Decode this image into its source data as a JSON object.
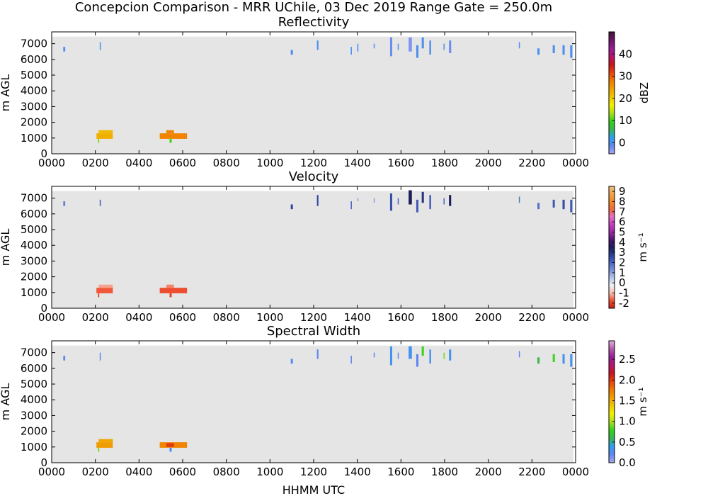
{
  "figure": {
    "title": "Concepcion Comparison - MRR UChile, 03 Dec 2019 Range Gate = 250.0m",
    "xlabel": "HHMM UTC"
  },
  "chart_data": [
    {
      "type": "heatmap",
      "title": "Reflectivity",
      "ylabel": "m AGL",
      "xlim": [
        0,
        24
      ],
      "ylim": [
        0,
        7750
      ],
      "x_ticks": [
        "0000",
        "0200",
        "0400",
        "0600",
        "0800",
        "1000",
        "1200",
        "1400",
        "1600",
        "1800",
        "2000",
        "2200",
        "0000"
      ],
      "y_ticks": [
        "0",
        "1000",
        "2000",
        "3000",
        "4000",
        "5000",
        "6000",
        "7000"
      ],
      "colorbar": {
        "label": "dBZ",
        "range": [
          -5,
          50
        ],
        "ticks": [
          "0",
          "10",
          "20",
          "30",
          "40"
        ],
        "tick_values": [
          0,
          10,
          20,
          30,
          40
        ]
      },
      "echoes": [
        {
          "t0": 0.53,
          "t1": 0.62,
          "z0": 6500,
          "z1": 6800,
          "v": 0
        },
        {
          "t0": 2.2,
          "t1": 2.25,
          "z0": 6600,
          "z1": 7100,
          "v": 0
        },
        {
          "t0": 10.95,
          "t1": 11.05,
          "z0": 6300,
          "z1": 6600,
          "v": 0
        },
        {
          "t0": 12.15,
          "t1": 12.22,
          "z0": 6600,
          "z1": 7200,
          "v": 0
        },
        {
          "t0": 13.7,
          "t1": 13.75,
          "z0": 6300,
          "z1": 6800,
          "v": 0
        },
        {
          "t0": 14.0,
          "t1": 14.05,
          "z0": 6500,
          "z1": 7000,
          "v": 0
        },
        {
          "t0": 14.75,
          "t1": 14.8,
          "z0": 6700,
          "z1": 7000,
          "v": 0
        },
        {
          "t0": 15.5,
          "t1": 15.6,
          "z0": 6200,
          "z1": 7400,
          "v": -2
        },
        {
          "t0": 15.85,
          "t1": 15.9,
          "z0": 6600,
          "z1": 7000,
          "v": 0
        },
        {
          "t0": 16.35,
          "t1": 16.5,
          "z0": 6500,
          "z1": 7400,
          "v": -3
        },
        {
          "t0": 16.7,
          "t1": 16.8,
          "z0": 6100,
          "z1": 6900,
          "v": 0
        },
        {
          "t0": 16.95,
          "t1": 17.05,
          "z0": 6700,
          "z1": 7400,
          "v": 0
        },
        {
          "t0": 17.3,
          "t1": 17.38,
          "z0": 6300,
          "z1": 7200,
          "v": 0
        },
        {
          "t0": 17.95,
          "t1": 18.0,
          "z0": 6600,
          "z1": 7000,
          "v": 0
        },
        {
          "t0": 18.2,
          "t1": 18.3,
          "z0": 6400,
          "z1": 7200,
          "v": -2
        },
        {
          "t0": 21.4,
          "t1": 21.45,
          "z0": 6700,
          "z1": 7100,
          "v": 0
        },
        {
          "t0": 22.25,
          "t1": 22.35,
          "z0": 6300,
          "z1": 6700,
          "v": 0
        },
        {
          "t0": 22.95,
          "t1": 23.05,
          "z0": 6400,
          "z1": 6900,
          "v": 0
        },
        {
          "t0": 23.4,
          "t1": 23.5,
          "z0": 6300,
          "z1": 6900,
          "v": 0
        },
        {
          "t0": 23.75,
          "t1": 23.85,
          "z0": 6100,
          "z1": 6900,
          "v": 0
        },
        {
          "t0": 2.05,
          "t1": 2.8,
          "z0": 950,
          "z1": 1300,
          "v": 23
        },
        {
          "t0": 2.15,
          "t1": 2.8,
          "z0": 1300,
          "z1": 1500,
          "v": 22
        },
        {
          "t0": 2.12,
          "t1": 2.18,
          "z0": 700,
          "z1": 950,
          "v": 12
        },
        {
          "t0": 4.95,
          "t1": 6.2,
          "z0": 950,
          "z1": 1300,
          "v": 27
        },
        {
          "t0": 5.25,
          "t1": 5.6,
          "z0": 1300,
          "z1": 1500,
          "v": 27
        },
        {
          "t0": 5.4,
          "t1": 5.5,
          "z0": 700,
          "z1": 950,
          "v": 10
        }
      ]
    },
    {
      "type": "heatmap",
      "title": "Velocity",
      "ylabel": "m AGL",
      "xlim": [
        0,
        24
      ],
      "ylim": [
        0,
        7750
      ],
      "x_ticks": [
        "0000",
        "0200",
        "0400",
        "0600",
        "0800",
        "1000",
        "1200",
        "1400",
        "1600",
        "1800",
        "2000",
        "2200",
        "0000"
      ],
      "y_ticks": [
        "0",
        "1000",
        "2000",
        "3000",
        "4000",
        "5000",
        "6000",
        "7000"
      ],
      "colorbar": {
        "label": "m s⁻¹",
        "range": [
          -2.5,
          9.5
        ],
        "ticks": [
          "-2",
          "-1",
          "0",
          "1",
          "2",
          "3",
          "4",
          "5",
          "6",
          "7",
          "8",
          "9"
        ],
        "tick_values": [
          -2,
          -1,
          0,
          1,
          2,
          3,
          4,
          5,
          6,
          7,
          8,
          9
        ]
      },
      "echoes": [
        {
          "t0": 0.53,
          "t1": 0.62,
          "z0": 6500,
          "z1": 6800,
          "v": 1.5
        },
        {
          "t0": 2.2,
          "t1": 2.25,
          "z0": 6500,
          "z1": 6900,
          "v": 2.2
        },
        {
          "t0": 10.95,
          "t1": 11.05,
          "z0": 6300,
          "z1": 6600,
          "v": 2.6
        },
        {
          "t0": 12.15,
          "t1": 12.22,
          "z0": 6500,
          "z1": 7200,
          "v": 2.5
        },
        {
          "t0": 13.7,
          "t1": 13.75,
          "z0": 6300,
          "z1": 6800,
          "v": 2.0
        },
        {
          "t0": 14.0,
          "t1": 14.05,
          "z0": 6800,
          "z1": 7000,
          "v": 1.0
        },
        {
          "t0": 14.75,
          "t1": 14.8,
          "z0": 6700,
          "z1": 7000,
          "v": 1.0
        },
        {
          "t0": 15.5,
          "t1": 15.6,
          "z0": 6200,
          "z1": 7300,
          "v": 2.4
        },
        {
          "t0": 15.85,
          "t1": 15.9,
          "z0": 6600,
          "z1": 7000,
          "v": 2.0
        },
        {
          "t0": 16.35,
          "t1": 16.5,
          "z0": 6600,
          "z1": 7500,
          "v": 3.5
        },
        {
          "t0": 16.7,
          "t1": 16.8,
          "z0": 6100,
          "z1": 6900,
          "v": 2.2
        },
        {
          "t0": 16.95,
          "t1": 17.05,
          "z0": 6700,
          "z1": 7400,
          "v": 3.0
        },
        {
          "t0": 17.3,
          "t1": 17.38,
          "z0": 6300,
          "z1": 7200,
          "v": 2.2
        },
        {
          "t0": 17.95,
          "t1": 18.0,
          "z0": 6600,
          "z1": 7000,
          "v": 2.0
        },
        {
          "t0": 18.2,
          "t1": 18.3,
          "z0": 6500,
          "z1": 7200,
          "v": 3.5
        },
        {
          "t0": 21.4,
          "t1": 21.45,
          "z0": 6700,
          "z1": 7100,
          "v": 1.8
        },
        {
          "t0": 22.25,
          "t1": 22.35,
          "z0": 6300,
          "z1": 6700,
          "v": 1.8
        },
        {
          "t0": 22.95,
          "t1": 23.05,
          "z0": 6400,
          "z1": 6900,
          "v": 2.2
        },
        {
          "t0": 23.4,
          "t1": 23.5,
          "z0": 6300,
          "z1": 6900,
          "v": 2.5
        },
        {
          "t0": 23.75,
          "t1": 23.85,
          "z0": 6100,
          "z1": 6900,
          "v": 2.2
        },
        {
          "t0": 2.05,
          "t1": 2.8,
          "z0": 950,
          "z1": 1300,
          "v": -1.7
        },
        {
          "t0": 2.15,
          "t1": 2.8,
          "z0": 1300,
          "z1": 1500,
          "v": -1.2
        },
        {
          "t0": 2.12,
          "t1": 2.18,
          "z0": 700,
          "z1": 950,
          "v": -1.8
        },
        {
          "t0": 4.95,
          "t1": 6.2,
          "z0": 950,
          "z1": 1300,
          "v": -1.8
        },
        {
          "t0": 5.25,
          "t1": 5.6,
          "z0": 1300,
          "z1": 1500,
          "v": -1.4
        },
        {
          "t0": 5.4,
          "t1": 5.5,
          "z0": 700,
          "z1": 950,
          "v": -1.9
        }
      ]
    },
    {
      "type": "heatmap",
      "title": "Spectral Width",
      "ylabel": "m AGL",
      "xlim": [
        0,
        24
      ],
      "ylim": [
        0,
        7750
      ],
      "x_ticks": [
        "0000",
        "0200",
        "0400",
        "0600",
        "0800",
        "1000",
        "1200",
        "1400",
        "1600",
        "1800",
        "2000",
        "2200",
        "0000"
      ],
      "y_ticks": [
        "0",
        "1000",
        "2000",
        "3000",
        "4000",
        "5000",
        "6000",
        "7000"
      ],
      "colorbar": {
        "label": "m s⁻¹",
        "range": [
          0,
          2.95
        ],
        "ticks": [
          "0.0",
          "0.5",
          "1.0",
          "1.5",
          "2.0",
          "2.5"
        ],
        "tick_values": [
          0,
          0.5,
          1.0,
          1.5,
          2.0,
          2.5
        ]
      },
      "echoes": [
        {
          "t0": 0.53,
          "t1": 0.62,
          "z0": 6500,
          "z1": 6800,
          "v": 0.2
        },
        {
          "t0": 2.2,
          "t1": 2.25,
          "z0": 6500,
          "z1": 7000,
          "v": 0.2
        },
        {
          "t0": 10.95,
          "t1": 11.05,
          "z0": 6300,
          "z1": 6600,
          "v": 0.25
        },
        {
          "t0": 12.15,
          "t1": 12.22,
          "z0": 6600,
          "z1": 7200,
          "v": 0.2
        },
        {
          "t0": 13.7,
          "t1": 13.75,
          "z0": 6300,
          "z1": 6800,
          "v": 0.2
        },
        {
          "t0": 14.75,
          "t1": 14.8,
          "z0": 6700,
          "z1": 7000,
          "v": 0.2
        },
        {
          "t0": 15.5,
          "t1": 15.6,
          "z0": 6200,
          "z1": 7400,
          "v": 0.3
        },
        {
          "t0": 15.85,
          "t1": 15.9,
          "z0": 6600,
          "z1": 7000,
          "v": 0.2
        },
        {
          "t0": 16.35,
          "t1": 16.5,
          "z0": 6600,
          "z1": 7400,
          "v": 0.3
        },
        {
          "t0": 16.7,
          "t1": 16.8,
          "z0": 6100,
          "z1": 6900,
          "v": 0.2
        },
        {
          "t0": 16.95,
          "t1": 17.05,
          "z0": 6800,
          "z1": 7400,
          "v": 0.8
        },
        {
          "t0": 17.3,
          "t1": 17.38,
          "z0": 6300,
          "z1": 7200,
          "v": 0.3
        },
        {
          "t0": 17.95,
          "t1": 18.0,
          "z0": 6600,
          "z1": 7000,
          "v": 0.9
        },
        {
          "t0": 18.2,
          "t1": 18.3,
          "z0": 6500,
          "z1": 7200,
          "v": 0.3
        },
        {
          "t0": 21.4,
          "t1": 21.45,
          "z0": 6700,
          "z1": 7100,
          "v": 0.2
        },
        {
          "t0": 22.25,
          "t1": 22.35,
          "z0": 6300,
          "z1": 6700,
          "v": 0.6
        },
        {
          "t0": 22.95,
          "t1": 23.05,
          "z0": 6400,
          "z1": 6900,
          "v": 0.8
        },
        {
          "t0": 23.4,
          "t1": 23.5,
          "z0": 6300,
          "z1": 6900,
          "v": 0.3
        },
        {
          "t0": 23.75,
          "t1": 23.85,
          "z0": 6100,
          "z1": 6900,
          "v": 0.3
        },
        {
          "t0": 2.05,
          "t1": 2.8,
          "z0": 950,
          "z1": 1300,
          "v": 1.6
        },
        {
          "t0": 2.15,
          "t1": 2.8,
          "z0": 1300,
          "z1": 1500,
          "v": 1.55
        },
        {
          "t0": 2.12,
          "t1": 2.18,
          "z0": 700,
          "z1": 950,
          "v": 0.9
        },
        {
          "t0": 4.95,
          "t1": 6.2,
          "z0": 950,
          "z1": 1300,
          "v": 1.7
        },
        {
          "t0": 5.25,
          "t1": 5.6,
          "z0": 1000,
          "z1": 1250,
          "v": 2.0
        },
        {
          "t0": 5.4,
          "t1": 5.5,
          "z0": 700,
          "z1": 950,
          "v": 0.3
        }
      ]
    }
  ],
  "colormaps": {
    "reflectivity": [
      "#a7a7f0",
      "#5f86f0",
      "#2e9ef0",
      "#39b552",
      "#34d21c",
      "#a9e01b",
      "#f0f000",
      "#f0c800",
      "#f0a000",
      "#f07800",
      "#e84010",
      "#c8141e",
      "#b4146e",
      "#941e96",
      "#6e1466",
      "#3c1432"
    ],
    "velocity": [
      "#c81e14",
      "#f05030",
      "#f8c0b0",
      "#eef0f8",
      "#b4c4ea",
      "#7890d8",
      "#4866c0",
      "#2c3c98",
      "#1c1e5a",
      "#50146e",
      "#9a2aa4",
      "#c83cc0",
      "#e070c0",
      "#f06a3a",
      "#f08a2a",
      "#f0a24a",
      "#f2c088"
    ],
    "spectral_width": [
      "#a8a8f0",
      "#5f86f0",
      "#2e9ef0",
      "#39b552",
      "#34d21c",
      "#a9e01b",
      "#f0f000",
      "#f0c800",
      "#f0a000",
      "#f07800",
      "#e84010",
      "#c8141e",
      "#b4146e",
      "#941e96",
      "#b45aa8",
      "#e0b0e8"
    ],
    "background": "#e5e5e5"
  }
}
